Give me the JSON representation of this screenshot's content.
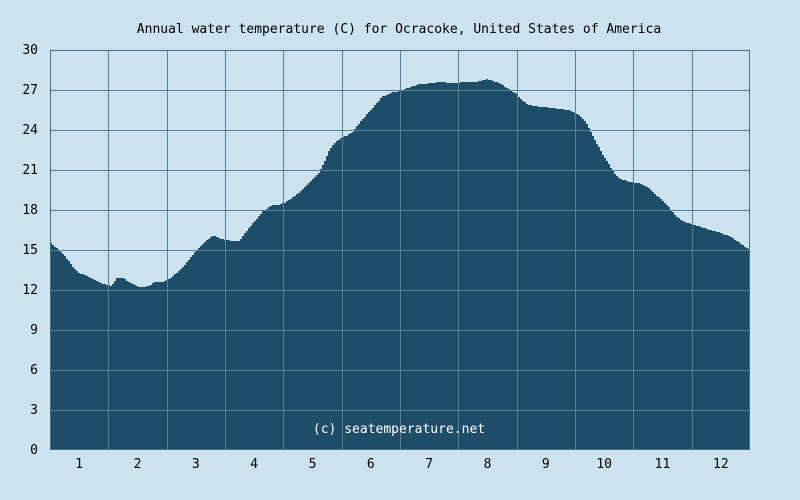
{
  "chart_data": {
    "type": "area",
    "title": "Annual water temperature (C) for Ocracoke, United States of America",
    "watermark": "(c) seatemperature.net",
    "xlabel": "",
    "ylabel": "",
    "ylim": [
      0,
      30
    ],
    "y_ticks": [
      "0",
      "3",
      "6",
      "9",
      "12",
      "15",
      "18",
      "21",
      "24",
      "27",
      "30"
    ],
    "x_ticks": [
      "1",
      "2",
      "3",
      "4",
      "5",
      "6",
      "7",
      "8",
      "9",
      "10",
      "11",
      "12"
    ],
    "grid": true,
    "colors": {
      "background": "#cce2ee",
      "plot_background": "#cce2ee",
      "fill": "#1e4d68",
      "grid": "#5a7f96",
      "axis": "#4a6e85"
    },
    "series": [
      {
        "x_month": [
          0.5,
          0.6,
          0.75,
          0.9,
          1.0,
          1.2,
          1.35,
          1.45,
          1.55,
          1.65,
          1.75,
          1.85,
          2.0,
          2.05,
          2.1,
          2.2,
          2.3,
          2.45,
          2.6,
          2.8,
          3.0,
          3.15,
          3.3,
          3.45,
          3.6,
          3.75,
          3.85,
          4.0,
          4.15,
          4.25,
          4.35,
          4.45,
          4.55,
          4.65,
          4.8,
          4.95,
          5.1,
          5.2,
          5.3,
          5.4,
          5.5,
          5.6,
          5.7,
          5.8,
          5.9,
          6.0,
          6.1,
          6.2,
          6.35,
          6.5,
          6.6,
          6.8,
          7.0,
          7.2,
          7.4,
          7.6,
          7.8,
          8.0,
          8.15,
          8.25,
          8.35,
          8.5,
          8.6,
          8.7,
          8.8,
          9.0,
          9.2,
          9.4,
          9.5,
          9.6,
          9.7,
          9.8,
          9.9,
          10.0,
          10.1,
          10.2,
          10.3,
          10.45,
          10.6,
          10.75,
          10.9,
          11.0,
          11.1,
          11.2,
          11.3,
          11.45,
          11.6,
          11.75,
          11.9,
          12.0,
          12.1,
          12.2,
          12.3,
          12.5
        ],
        "values": [
          15.6,
          15.2,
          14.6,
          13.7,
          13.3,
          12.9,
          12.6,
          12.4,
          12.3,
          12.9,
          12.9,
          12.6,
          12.3,
          12.2,
          12.2,
          12.3,
          12.6,
          12.6,
          13.0,
          13.8,
          14.9,
          15.6,
          16.1,
          15.8,
          15.7,
          15.7,
          16.3,
          17.1,
          17.9,
          18.2,
          18.4,
          18.4,
          18.6,
          18.9,
          19.4,
          20.1,
          20.7,
          21.5,
          22.6,
          23.1,
          23.4,
          23.6,
          23.9,
          24.5,
          25.0,
          25.5,
          26.0,
          26.5,
          26.8,
          26.9,
          27.1,
          27.4,
          27.5,
          27.6,
          27.5,
          27.6,
          27.6,
          27.8,
          27.6,
          27.4,
          27.1,
          26.7,
          26.2,
          25.9,
          25.8,
          25.7,
          25.6,
          25.5,
          25.3,
          25.0,
          24.5,
          23.6,
          22.8,
          22.0,
          21.3,
          20.6,
          20.3,
          20.1,
          20.0,
          19.7,
          19.1,
          18.7,
          18.3,
          17.7,
          17.3,
          17.0,
          16.8,
          16.6,
          16.4,
          16.3,
          16.1,
          15.9,
          15.6,
          15.0
        ]
      }
    ]
  }
}
